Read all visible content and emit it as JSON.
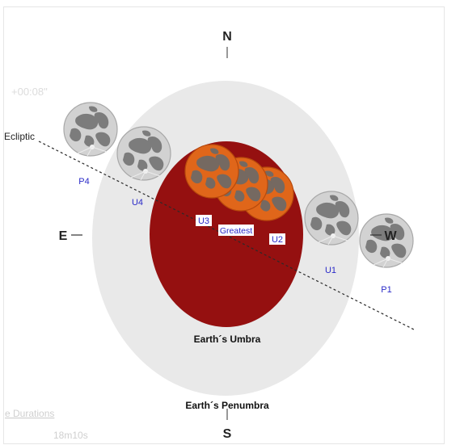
{
  "diagram": {
    "compass": {
      "north": "N",
      "south": "S",
      "east": "E",
      "west": "W"
    },
    "labels": {
      "ecliptic": "Ecliptic",
      "umbra": "Earth´s Umbra",
      "penumbra": "Earth´s Penumbra"
    },
    "contacts": {
      "p1": "P1",
      "u1": "U1",
      "u2": "U2",
      "greatest": "Greatest",
      "u3": "U3",
      "u4": "U4",
      "p4": "P4"
    },
    "faded_text": {
      "top_left": "+00:08\"",
      "bottom_left_1": "e Durations",
      "bottom_left_2": "18m10s"
    },
    "colors": {
      "penumbra": "#e9e9e9",
      "umbra": "#951010",
      "eclipsed_moon": "#e06818",
      "moon": "#c8c8c8",
      "contact_label": "#2a2ac8"
    }
  }
}
